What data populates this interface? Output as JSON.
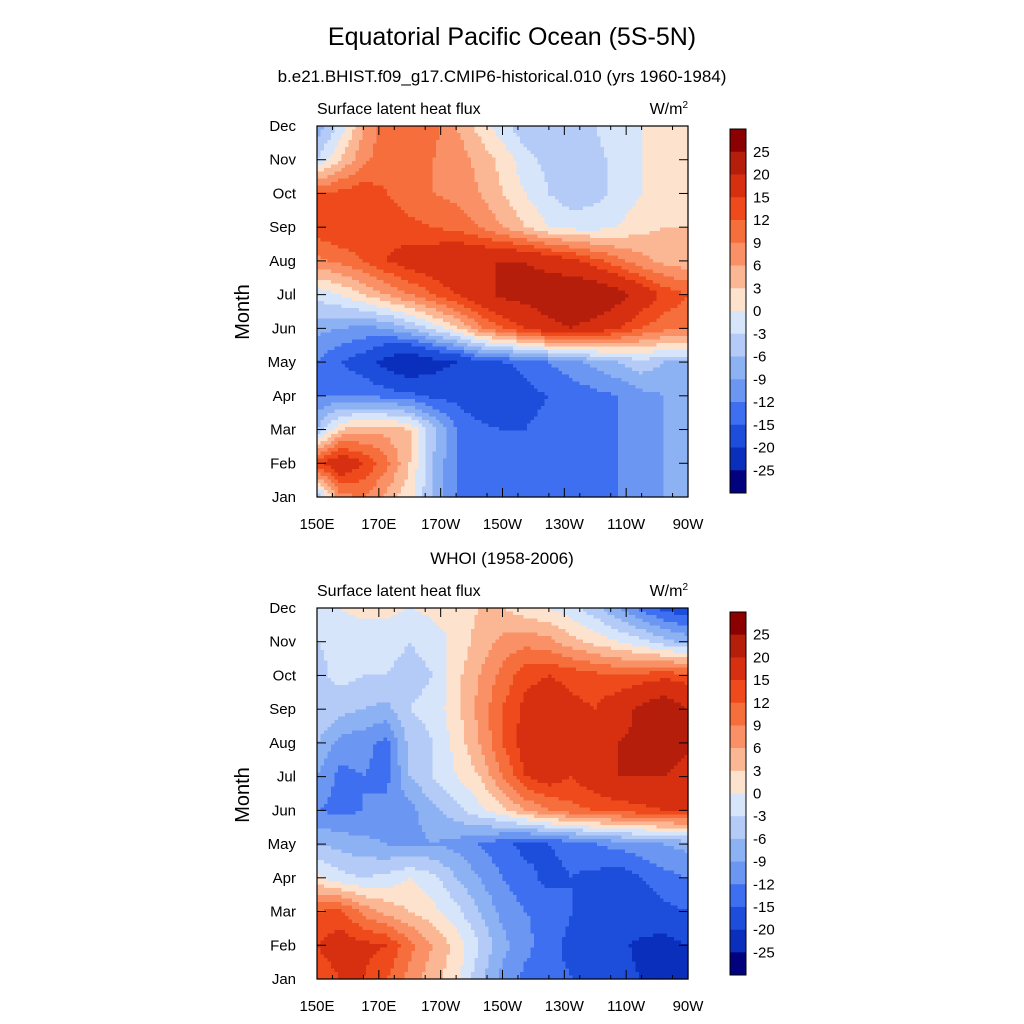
{
  "figure": {
    "title": "Equatorial Pacific Ocean (5S-5N)"
  },
  "chart_data": [
    {
      "type": "heatmap",
      "title": "b.e21.BHIST.f09_g17.CMIP6-historical.010 (yrs 1960-1984)",
      "left_label": "Surface latent heat flux",
      "units_base": "W/m",
      "units_exp": "2",
      "ylabel": "Month",
      "xticks": [
        "150E",
        "170E",
        "170W",
        "150W",
        "130W",
        "110W",
        "90W"
      ],
      "yticks": [
        "Jan",
        "Feb",
        "Mar",
        "Apr",
        "May",
        "Jun",
        "Jul",
        "Aug",
        "Sep",
        "Oct",
        "Nov",
        "Dec"
      ],
      "colorbar_labels": [
        "25",
        "20",
        "15",
        "12",
        "9",
        "6",
        "3",
        "0",
        "-3",
        "-6",
        "-9",
        "-12",
        "-15",
        "-20",
        "-25"
      ],
      "colorbar_colors": [
        "#8b0000",
        "#b51e0b",
        "#d73010",
        "#ee4a1b",
        "#f56e3c",
        "#f99066",
        "#fbb794",
        "#fde2cd",
        "#d7e5fb",
        "#b3cbf6",
        "#8cb2f3",
        "#6b97f2",
        "#3e6ff0",
        "#1c4edb",
        "#0b2fbd",
        "#02027f"
      ],
      "grid_lon": [
        150,
        157.5,
        165,
        172.5,
        180,
        187.5,
        195,
        202.5,
        210,
        217.5,
        225,
        232.5,
        240,
        247.5,
        255,
        262.5,
        270
      ],
      "grid_month": [
        1,
        2,
        3,
        4,
        5,
        6,
        7,
        8,
        9,
        10,
        11,
        12
      ],
      "values": [
        [
          -6,
          8,
          9,
          5,
          1,
          -6,
          -12,
          -13,
          -14,
          -15,
          -15,
          -14,
          -13,
          -12,
          -10,
          -9,
          -9
        ],
        [
          14,
          19,
          15,
          10,
          3,
          -6,
          -12,
          -14,
          -15,
          -15,
          -15,
          -14,
          -13,
          -12,
          -10,
          -9,
          -9
        ],
        [
          -6,
          3,
          5,
          5,
          3,
          -5,
          -12,
          -14,
          -15,
          -15,
          -14,
          -14,
          -13,
          -12,
          -10,
          -9,
          -9
        ],
        [
          -12,
          -12,
          -12,
          -13,
          -14,
          -16,
          -16,
          -18,
          -20,
          -16,
          -15,
          -14,
          -13,
          -12,
          -10,
          -9,
          -9
        ],
        [
          -12,
          -15,
          -17,
          -22,
          -25,
          -22,
          -20,
          -16,
          -15,
          -14,
          -12,
          -10,
          -8,
          -6,
          -4,
          -6,
          -6
        ],
        [
          -8,
          -9,
          -10,
          -9,
          -6,
          -2,
          2,
          8,
          12,
          15,
          18,
          20,
          18,
          15,
          12,
          10,
          10
        ],
        [
          -2,
          0,
          3,
          6,
          9,
          12,
          15,
          18,
          21,
          22,
          24,
          25,
          25,
          22,
          18,
          14,
          12
        ],
        [
          8,
          10,
          12,
          15,
          17,
          18,
          20,
          20,
          20,
          20,
          18,
          16,
          13,
          10,
          7,
          5,
          4
        ],
        [
          14,
          15,
          15,
          14,
          13,
          12,
          11,
          9,
          6,
          3,
          0,
          -1,
          -1,
          0,
          2,
          3,
          3
        ],
        [
          12,
          13,
          14,
          12,
          10,
          9,
          8,
          6,
          3,
          0,
          -3,
          -5,
          -4,
          -2,
          0,
          1,
          2
        ],
        [
          -3,
          3,
          8,
          11,
          10,
          9,
          8,
          5,
          2,
          -2,
          -4,
          -5,
          -4,
          -2,
          0,
          0,
          1
        ],
        [
          -8,
          -2,
          6,
          11,
          12,
          10,
          6,
          2,
          -2,
          -5,
          -6,
          -5,
          -3,
          -1,
          0,
          0,
          0
        ]
      ]
    },
    {
      "type": "heatmap",
      "title": "WHOI (1958-2006)",
      "left_label": "Surface latent heat flux",
      "units_base": "W/m",
      "units_exp": "2",
      "ylabel": "Month",
      "xticks": [
        "150E",
        "170E",
        "170W",
        "150W",
        "130W",
        "110W",
        "90W"
      ],
      "yticks": [
        "Jan",
        "Feb",
        "Mar",
        "Apr",
        "May",
        "Jun",
        "Jul",
        "Aug",
        "Sep",
        "Oct",
        "Nov",
        "Dec"
      ],
      "colorbar_labels": [
        "25",
        "20",
        "15",
        "12",
        "9",
        "6",
        "3",
        "0",
        "-3",
        "-6",
        "-9",
        "-12",
        "-15",
        "-20",
        "-25"
      ],
      "colorbar_colors": [
        "#8b0000",
        "#b51e0b",
        "#d73010",
        "#ee4a1b",
        "#f56e3c",
        "#f99066",
        "#fbb794",
        "#fde2cd",
        "#d7e5fb",
        "#b3cbf6",
        "#8cb2f3",
        "#6b97f2",
        "#3e6ff0",
        "#1c4edb",
        "#0b2fbd",
        "#02027f"
      ],
      "grid_lon": [
        150,
        157.5,
        165,
        172.5,
        180,
        187.5,
        195,
        202.5,
        210,
        217.5,
        225,
        232.5,
        240,
        247.5,
        255,
        262.5,
        270
      ],
      "grid_month": [
        1,
        2,
        3,
        4,
        5,
        6,
        7,
        8,
        9,
        10,
        11,
        12
      ],
      "values": [
        [
          13,
          15,
          15,
          12,
          8,
          4,
          1,
          -5,
          -10,
          -13,
          -14,
          -15,
          -17,
          -19,
          -20,
          -22,
          -25
        ],
        [
          15,
          17,
          16,
          15,
          10,
          6,
          2,
          -3,
          -8,
          -11,
          -14,
          -16,
          -17,
          -19,
          -21,
          -22,
          -20
        ],
        [
          12,
          13,
          8,
          5,
          3,
          1,
          -2,
          -6,
          -10,
          -12,
          -13,
          -15,
          -17,
          -18,
          -17,
          -16,
          -15
        ],
        [
          1,
          -2,
          -3,
          -2,
          0,
          -2,
          -6,
          -9,
          -12,
          -14,
          -16,
          -15,
          -16,
          -17,
          -15,
          -13,
          -12
        ],
        [
          -6,
          -7,
          -8,
          -9,
          -10,
          -9,
          -10,
          -12,
          -14,
          -16,
          -15,
          -14,
          -12,
          -11,
          -10,
          -9,
          -8
        ],
        [
          -12,
          -13,
          -12,
          -11,
          -10,
          -7,
          -4,
          -1,
          2,
          6,
          9,
          11,
          12,
          13,
          14,
          15,
          15
        ],
        [
          -9,
          -13,
          -12,
          -13,
          -6,
          -3,
          0,
          3,
          9,
          15,
          17,
          15,
          18,
          20,
          20,
          20,
          18
        ],
        [
          -6,
          -10,
          -11,
          -13,
          -5,
          -3,
          1,
          6,
          12,
          17,
          20,
          17,
          18,
          20,
          21,
          22,
          21
        ],
        [
          -3,
          -5,
          -6,
          -7,
          -3,
          -2,
          2,
          7,
          12,
          16,
          18,
          16,
          15,
          18,
          21,
          24,
          20
        ],
        [
          -4,
          -2,
          -3,
          -3,
          -4,
          -3,
          2,
          6,
          10,
          14,
          15,
          14,
          13,
          12,
          13,
          14,
          13
        ],
        [
          -3,
          -2,
          -2,
          -2,
          -3,
          -2,
          1,
          4,
          7,
          8,
          7,
          4,
          2,
          0,
          -2,
          -5,
          -7
        ],
        [
          -1,
          0,
          1,
          1,
          0,
          1,
          2,
          3,
          3,
          1,
          0,
          -2,
          -5,
          -9,
          -13,
          -16,
          -18
        ]
      ]
    }
  ]
}
